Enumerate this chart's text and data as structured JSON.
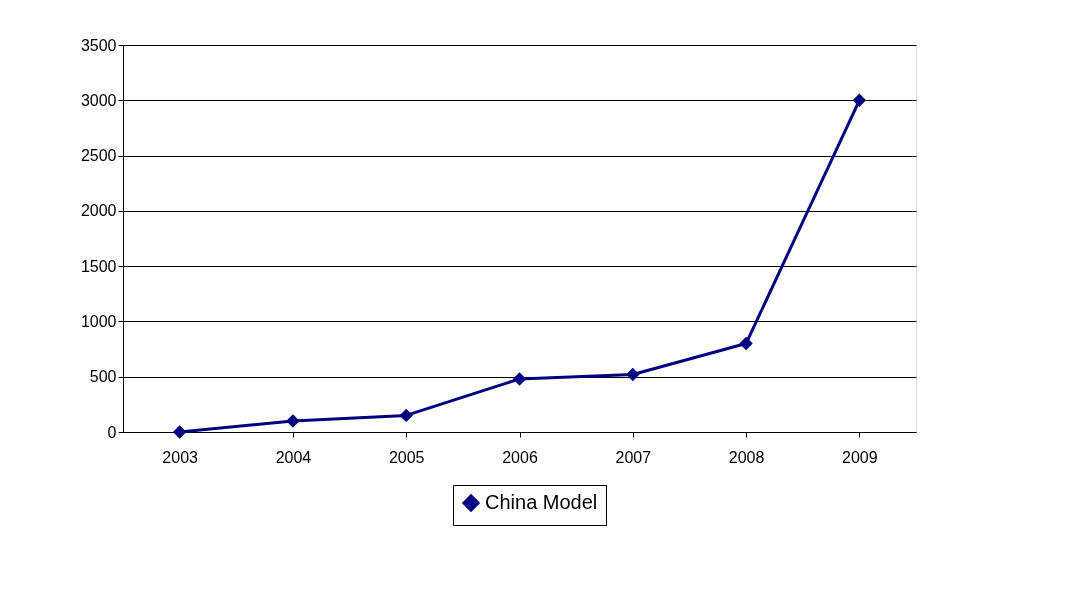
{
  "chart_data": {
    "type": "line",
    "categories": [
      "2003",
      "2004",
      "2005",
      "2006",
      "2007",
      "2008",
      "2009"
    ],
    "series": [
      {
        "name": "China Model",
        "color": "#000080",
        "values": [
          0,
          100,
          150,
          480,
          520,
          800,
          3000
        ]
      }
    ],
    "ylim": [
      0,
      3500
    ],
    "yticks": [
      0,
      500,
      1000,
      1500,
      2000,
      2500,
      3000,
      3500
    ],
    "grid": "y",
    "legend": "bottom",
    "marker": "diamond",
    "line_style": "solid"
  }
}
